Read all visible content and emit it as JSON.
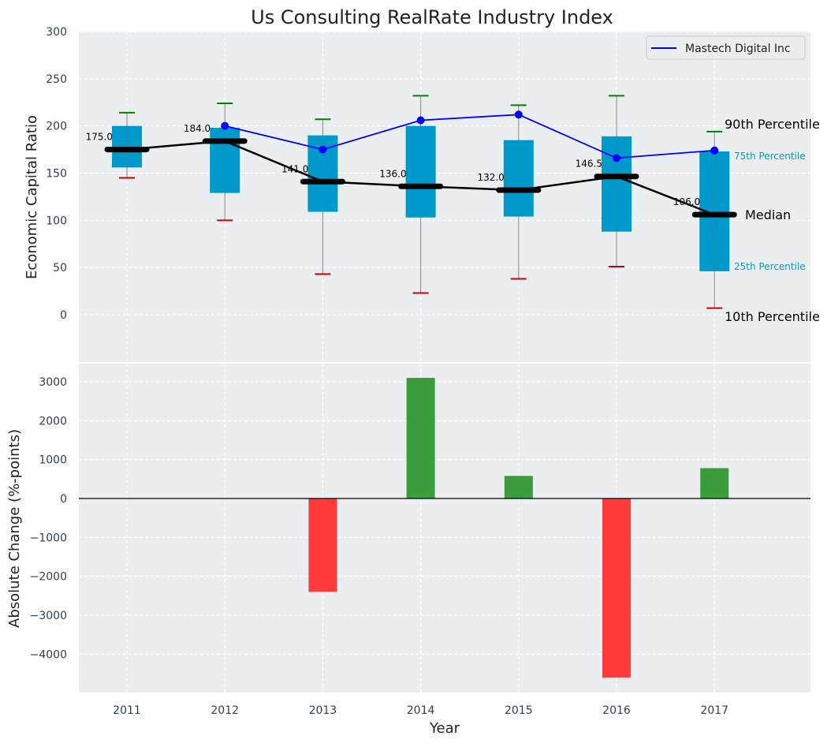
{
  "chart_data": [
    {
      "type": "box",
      "title": "Us Consulting RealRate Industry Index",
      "xlabel": "",
      "ylabel": "Economic Capital Ratio",
      "ylim": [
        -50,
        300
      ],
      "yticks": [
        0,
        50,
        100,
        150,
        200,
        250,
        300
      ],
      "categories": [
        "2011",
        "2012",
        "2013",
        "2014",
        "2015",
        "2016",
        "2017"
      ],
      "p10": [
        145,
        100,
        43,
        23,
        38,
        51,
        7
      ],
      "p25": [
        156,
        129,
        109,
        103,
        104,
        88,
        46
      ],
      "median": [
        175,
        184,
        141,
        136,
        132,
        146.5,
        106
      ],
      "median_labels": [
        "175.0",
        "184.0",
        "141.0",
        "136.0",
        "132.0",
        "146.5",
        "106.0"
      ],
      "p75": [
        200,
        198,
        190,
        200,
        185,
        189,
        173
      ],
      "p90": [
        214,
        224,
        207,
        232,
        222,
        232,
        194
      ],
      "series": [
        {
          "name": "Mastech Digital Inc",
          "years": [
            "2012",
            "2013",
            "2014",
            "2015",
            "2016",
            "2017"
          ],
          "values": [
            200,
            175,
            206,
            212,
            166,
            174
          ],
          "color": "#0000ff"
        }
      ],
      "annotations": {
        "p90": "90th Percentile",
        "p75": "75th Percentile",
        "median": "Median",
        "p25": "25th Percentile",
        "p10": "10th Percentile"
      },
      "legend": "top-right",
      "colors": {
        "box": "#0099cc",
        "p90": "#008000",
        "p10": "#cc0000",
        "median": "#000000",
        "background": "#eaeef0"
      }
    },
    {
      "type": "bar",
      "xlabel": "Year",
      "ylabel": "Absolute Change (%-points)",
      "ylim": [
        -5000,
        3500
      ],
      "yticks": [
        -4000,
        -3000,
        -2000,
        -1000,
        0,
        1000,
        2000,
        3000
      ],
      "ytick_labels": [
        "−4000",
        "−3000",
        "−2000",
        "−1000",
        "0",
        "1000",
        "2000",
        "3000"
      ],
      "categories": [
        "2011",
        "2012",
        "2013",
        "2014",
        "2015",
        "2016",
        "2017"
      ],
      "values": [
        0,
        0,
        -2400,
        3100,
        580,
        -4600,
        780
      ],
      "colors": {
        "positive": "#3a9c3a",
        "negative": "#ff3b3b"
      }
    }
  ]
}
